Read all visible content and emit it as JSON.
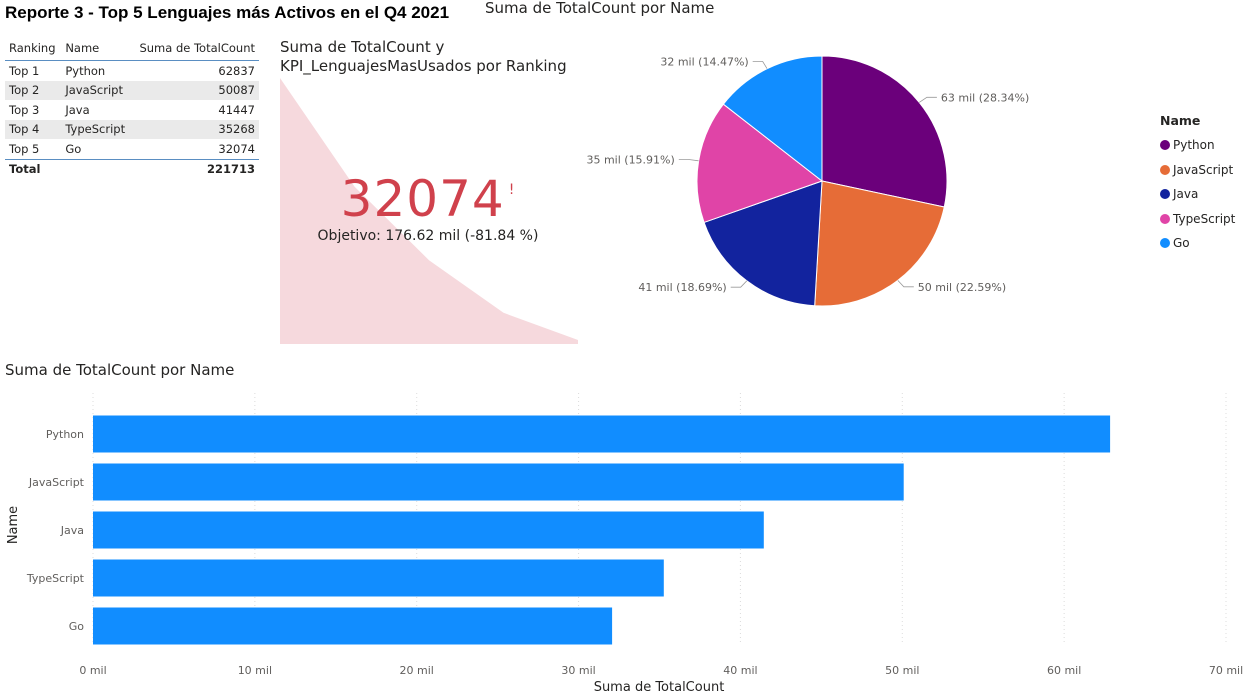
{
  "report_title": "Reporte 3 - Top 5 Lenguajes más Activos en el Q4 2021",
  "table": {
    "headers": [
      "Ranking",
      "Name",
      "Suma de TotalCount"
    ],
    "rows": [
      {
        "ranking": "Top 1",
        "name": "Python",
        "value": "62837"
      },
      {
        "ranking": "Top 2",
        "name": "JavaScript",
        "value": "50087"
      },
      {
        "ranking": "Top 3",
        "name": "Java",
        "value": "41447"
      },
      {
        "ranking": "Top 4",
        "name": "TypeScript",
        "value": "35268"
      },
      {
        "ranking": "Top 5",
        "name": "Go",
        "value": "32074"
      }
    ],
    "total_label": "Total",
    "total_value": "221713"
  },
  "kpi": {
    "title_line1": "Suma de TotalCount y",
    "title_line2": "KPI_LenguajesMasUsados por Ranking",
    "value": "32074",
    "status_icon": "warning-exclamation-icon",
    "status_glyph": "!",
    "goal_text": "Objetivo: 176.62 mil (-81.84 %)",
    "trend": [
      62837,
      50087,
      41447,
      35268,
      32074
    ],
    "color": "#d0414c",
    "trend_color": "#f6d9dd"
  },
  "pie": {
    "title": "Suma de TotalCount por Name",
    "legend_title": "Name",
    "slices": [
      {
        "name": "Python",
        "label": "63 mil (28.34%)",
        "color": "#6b007b"
      },
      {
        "name": "JavaScript",
        "label": "50 mil (22.59%)",
        "color": "#e66c37"
      },
      {
        "name": "Java",
        "label": "41 mil (18.69%)",
        "color": "#12239e"
      },
      {
        "name": "TypeScript",
        "label": "35 mil (15.91%)",
        "color": "#e044a7"
      },
      {
        "name": "Go",
        "label": "32 mil (14.47%)",
        "color": "#118dff"
      }
    ]
  },
  "bar": {
    "title": "Suma de TotalCount por Name",
    "xlabel": "Suma de TotalCount",
    "ylabel": "Name",
    "color": "#118dff"
  },
  "chart_data": [
    {
      "type": "pie",
      "title": "Suma de TotalCount por Name",
      "categories": [
        "Python",
        "JavaScript",
        "Java",
        "TypeScript",
        "Go"
      ],
      "values": [
        62837,
        50087,
        41447,
        35268,
        32074
      ],
      "legend": "right"
    },
    {
      "type": "bar",
      "orientation": "horizontal",
      "title": "Suma de TotalCount por Name",
      "categories": [
        "Python",
        "JavaScript",
        "Java",
        "TypeScript",
        "Go"
      ],
      "values": [
        62837,
        50087,
        41447,
        35268,
        32074
      ],
      "xlabel": "Suma de TotalCount",
      "ylabel": "Name",
      "xlim": [
        0,
        70000
      ],
      "xticks": [
        "0 mil",
        "10 mil",
        "20 mil",
        "30 mil",
        "40 mil",
        "50 mil",
        "60 mil",
        "70 mil"
      ],
      "grid": true
    }
  ]
}
